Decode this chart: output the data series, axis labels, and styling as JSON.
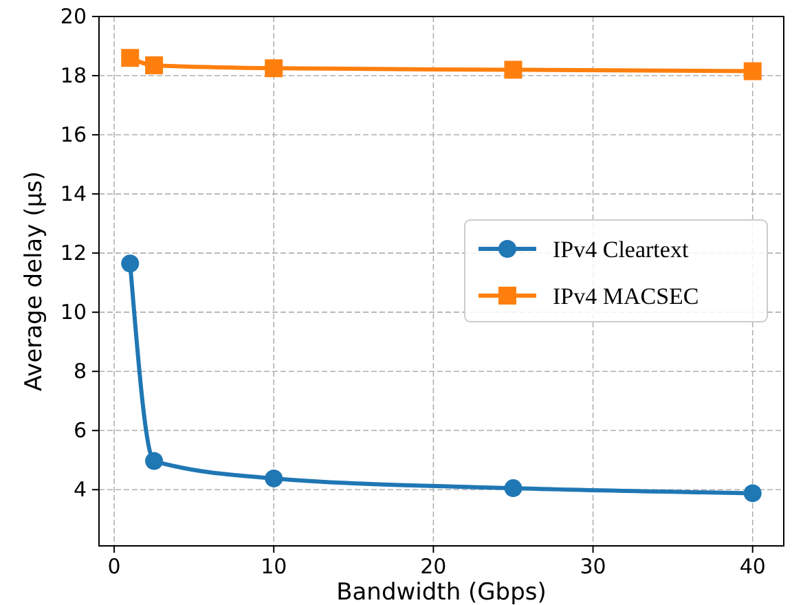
{
  "chart_data": {
    "type": "line",
    "xlabel": "Bandwidth (Gbps)",
    "ylabel": "Average delay (μs)",
    "xlim": [
      -0.95,
      41.95
    ],
    "xticks": [
      0,
      10,
      20,
      30,
      40
    ],
    "ylim": [
      2.1,
      20
    ],
    "yticks": [
      4,
      6,
      8,
      10,
      12,
      14,
      16,
      18,
      20
    ],
    "grid": true,
    "legend": "center right",
    "line_style": "solid",
    "series": [
      {
        "name": "IPv4 Cleartext",
        "color": "#1f77b4",
        "marker": "circle",
        "x": [
          1,
          2.5,
          10,
          25,
          40
        ],
        "values": [
          11.65,
          4.97,
          4.38,
          4.05,
          3.88
        ]
      },
      {
        "name": "IPv4 MACSEC",
        "color": "#ff7f0e",
        "marker": "square",
        "x": [
          1,
          2.5,
          10,
          25,
          40
        ],
        "values": [
          18.6,
          18.35,
          18.25,
          18.2,
          18.15
        ]
      }
    ]
  }
}
